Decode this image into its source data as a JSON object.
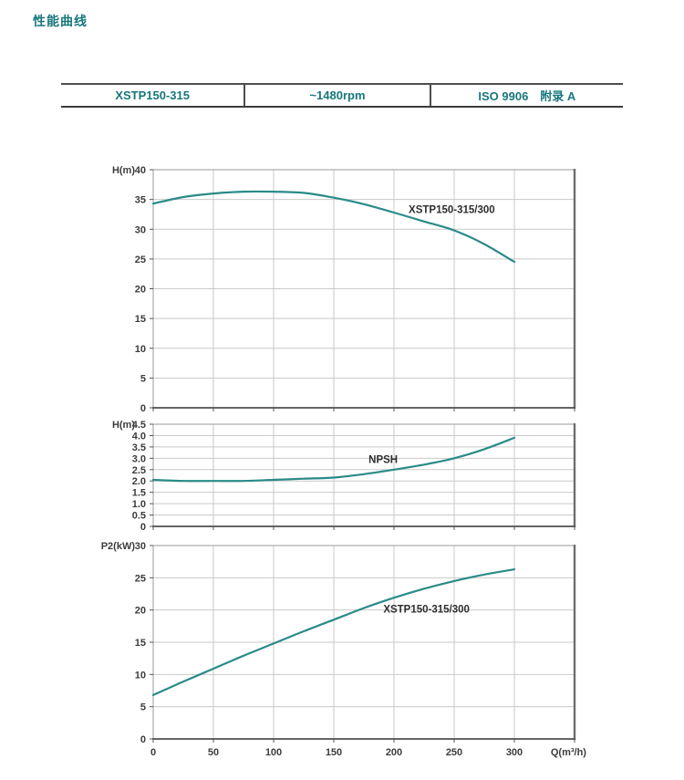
{
  "page": {
    "title": "性能曲线"
  },
  "spec_table": {
    "model": "XSTP150-315",
    "speed": "~1480rpm",
    "standard": "ISO 9906　附录 A"
  },
  "colors": {
    "title_teal": "#17777b",
    "curve_teal": "#2a8b88",
    "grid": "#c9c9c9",
    "axis_text": "#3c3c3c",
    "label_text": "#2e2e2e",
    "border_light": "#999999",
    "border_right": "#6f6f6f",
    "border_bottom": "#4f4f4f"
  },
  "chart_data": [
    {
      "type": "line",
      "name": "head-curve-chart",
      "ylabel": "H(m)",
      "ylim": [
        0,
        40
      ],
      "ystep": 5,
      "ytick_decimals": 0,
      "xlim": [
        0,
        350
      ],
      "xtick_step": 50,
      "xtick_label_max": 300,
      "grid": true,
      "series": [
        {
          "name": "XSTP150-315/300",
          "x": [
            0,
            25,
            50,
            75,
            100,
            125,
            150,
            175,
            200,
            225,
            250,
            275,
            300
          ],
          "y": [
            34.3,
            35.4,
            36.0,
            36.3,
            36.3,
            36.1,
            35.3,
            34.2,
            32.8,
            31.3,
            29.8,
            27.5,
            24.5
          ]
        }
      ],
      "curve_label": {
        "text": "XSTP150-315/300",
        "at_x": 248,
        "at_y": 33.3
      },
      "xlabel": ""
    },
    {
      "type": "line",
      "name": "npsh-curve-chart",
      "ylabel": "H(m)",
      "ylim": [
        0,
        4.5
      ],
      "ystep": 0.5,
      "ytick_decimals": 1,
      "xlim": [
        0,
        350
      ],
      "xtick_step": 50,
      "xtick_label_max": 300,
      "grid": true,
      "series": [
        {
          "name": "NPSH",
          "x": [
            0,
            25,
            50,
            75,
            100,
            125,
            150,
            175,
            200,
            225,
            250,
            275,
            300
          ],
          "y": [
            2.05,
            2.0,
            2.0,
            2.0,
            2.05,
            2.1,
            2.15,
            2.3,
            2.5,
            2.72,
            3.0,
            3.4,
            3.9
          ]
        }
      ],
      "curve_label": {
        "text": "NPSH",
        "at_x": 191,
        "at_y": 2.95
      },
      "xlabel": ""
    },
    {
      "type": "line",
      "name": "power-curve-chart",
      "ylabel": "P2(kW)",
      "ylim": [
        0,
        30
      ],
      "ystep": 5,
      "ytick_decimals": 0,
      "xlim": [
        0,
        350
      ],
      "xtick_step": 50,
      "xtick_label_max": 300,
      "grid": true,
      "series": [
        {
          "name": "XSTP150-315/300",
          "x": [
            0,
            25,
            50,
            75,
            100,
            125,
            150,
            175,
            200,
            225,
            250,
            275,
            300
          ],
          "y": [
            6.8,
            8.9,
            10.9,
            12.9,
            14.8,
            16.7,
            18.5,
            20.3,
            21.9,
            23.3,
            24.5,
            25.5,
            26.3
          ]
        }
      ],
      "curve_label": {
        "text": "XSTP150-315/300",
        "at_x": 227,
        "at_y": 20.2
      },
      "xlabel": "Q(m³/h)",
      "xlabel_at": 345
    }
  ]
}
